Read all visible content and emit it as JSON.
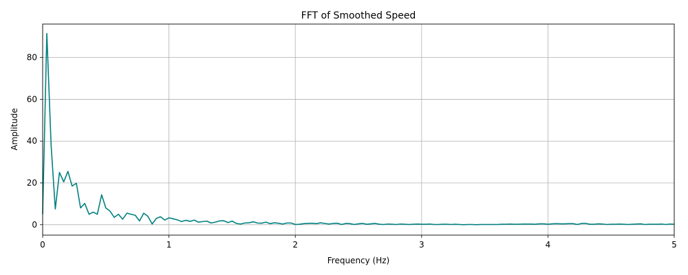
{
  "chart_data": {
    "type": "line",
    "title": "FFT of Smoothed Speed",
    "xlabel": "Frequency (Hz)",
    "ylabel": "Amplitude",
    "xlim": [
      0,
      5
    ],
    "ylim": [
      -5,
      96
    ],
    "xticks": [
      0,
      1,
      2,
      3,
      4,
      5
    ],
    "xtick_labels": [
      "0",
      "1",
      "2",
      "3",
      "4",
      "5"
    ],
    "yticks": [
      0,
      20,
      40,
      60,
      80
    ],
    "ytick_labels": [
      "0",
      "20",
      "40",
      "60",
      "80"
    ],
    "grid": true,
    "line_color": "#008080",
    "series": [
      {
        "x": [
          0.0,
          0.033,
          0.067,
          0.1,
          0.133,
          0.167,
          0.2,
          0.233,
          0.267,
          0.3,
          0.333,
          0.367,
          0.4,
          0.433,
          0.467,
          0.5,
          0.533,
          0.567,
          0.6,
          0.633,
          0.667,
          0.7,
          0.733,
          0.767,
          0.8,
          0.833,
          0.867,
          0.9,
          0.933,
          0.967,
          1.0,
          1.033,
          1.067,
          1.1,
          1.133,
          1.167,
          1.2,
          1.233,
          1.267,
          1.3,
          1.333,
          1.367,
          1.4,
          1.433,
          1.467,
          1.5,
          1.533,
          1.567,
          1.6,
          1.633,
          1.667,
          1.7,
          1.733,
          1.767,
          1.8,
          1.833,
          1.867,
          1.9,
          1.933,
          1.967,
          2.0,
          2.033,
          2.067,
          2.1,
          2.133,
          2.167,
          2.2,
          2.233,
          2.267,
          2.3,
          2.333,
          2.367,
          2.4,
          2.433,
          2.467,
          2.5,
          2.533,
          2.567,
          2.6,
          2.633,
          2.667,
          2.7,
          2.733,
          2.767,
          2.8,
          2.833,
          2.867,
          2.9,
          2.933,
          2.967,
          3.0,
          3.033,
          3.067,
          3.1,
          3.133,
          3.167,
          3.2,
          3.233,
          3.267,
          3.3,
          3.333,
          3.367,
          3.4,
          3.433,
          3.467,
          3.5,
          3.533,
          3.567,
          3.6,
          3.633,
          3.667,
          3.7,
          3.733,
          3.767,
          3.8,
          3.833,
          3.867,
          3.9,
          3.933,
          3.967,
          4.0,
          4.033,
          4.067,
          4.1,
          4.133,
          4.167,
          4.2,
          4.233,
          4.267,
          4.3,
          4.333,
          4.367,
          4.4,
          4.433,
          4.467,
          4.5,
          4.533,
          4.567,
          4.6,
          4.633,
          4.667,
          4.7,
          4.733,
          4.767,
          4.8,
          4.833,
          4.867,
          4.9,
          4.933,
          4.967,
          5.0
        ],
        "y": [
          5.0,
          91.5,
          38.0,
          7.5,
          25.0,
          20.5,
          25.5,
          18.5,
          19.8,
          8.0,
          10.2,
          5.0,
          6.0,
          5.0,
          14.3,
          8.0,
          6.5,
          3.5,
          5.0,
          2.6,
          5.5,
          5.0,
          4.5,
          1.8,
          5.5,
          4.0,
          0.3,
          3.0,
          3.8,
          2.2,
          3.3,
          2.8,
          2.3,
          1.5,
          2.1,
          1.6,
          2.2,
          1.2,
          1.5,
          1.7,
          0.8,
          1.2,
          1.8,
          1.9,
          1.0,
          1.7,
          0.6,
          0.3,
          0.8,
          0.9,
          1.4,
          0.8,
          0.7,
          1.2,
          0.5,
          0.9,
          0.7,
          0.3,
          0.8,
          0.8,
          0.1,
          0.2,
          0.5,
          0.6,
          0.7,
          0.5,
          0.9,
          0.6,
          0.3,
          0.6,
          0.7,
          0.1,
          0.6,
          0.5,
          0.1,
          0.4,
          0.6,
          0.2,
          0.4,
          0.6,
          0.2,
          0.1,
          0.3,
          0.2,
          0.1,
          0.3,
          0.2,
          0.1,
          0.2,
          0.3,
          0.2,
          0.2,
          0.3,
          0.1,
          0.1,
          0.2,
          0.2,
          0.1,
          0.2,
          0.1,
          0.0,
          0.1,
          0.1,
          0.0,
          0.1,
          0.1,
          0.1,
          0.1,
          0.1,
          0.2,
          0.2,
          0.3,
          0.2,
          0.2,
          0.3,
          0.3,
          0.3,
          0.2,
          0.4,
          0.4,
          0.2,
          0.4,
          0.5,
          0.4,
          0.4,
          0.5,
          0.5,
          0.1,
          0.6,
          0.6,
          0.2,
          0.2,
          0.4,
          0.3,
          0.1,
          0.2,
          0.2,
          0.3,
          0.2,
          0.1,
          0.2,
          0.3,
          0.4,
          0.1,
          0.2,
          0.2,
          0.2,
          0.3,
          0.1,
          0.3,
          0.2
        ]
      }
    ]
  }
}
